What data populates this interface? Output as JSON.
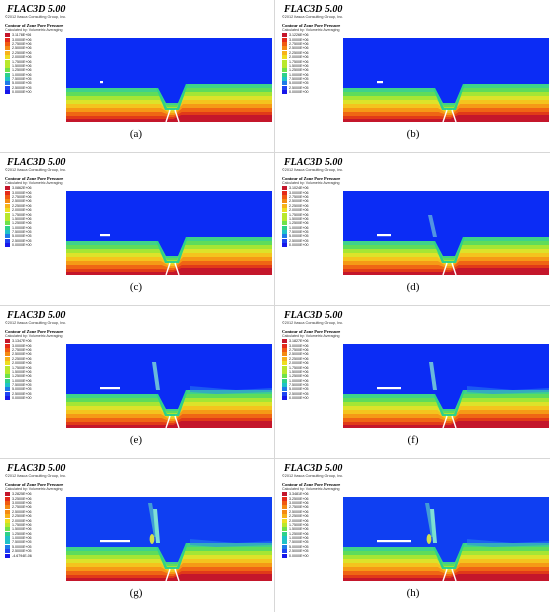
{
  "colors": {
    "blue": "#0b2cf5",
    "scale": [
      "#c4162b",
      "#e42b1a",
      "#f05a12",
      "#f48a13",
      "#f7b21a",
      "#eede20",
      "#b9e82c",
      "#6fe24a",
      "#2ed18a",
      "#1fc2c8",
      "#1e7be8",
      "#1f44f2",
      "#1717ea"
    ]
  },
  "panels": [
    {
      "title": "FLAC3D 5.00",
      "copyright": "©2012 Itasca Consulting Group, Inc.",
      "legend_title": "Contour of Zone Pore Pressure",
      "legend_subtitle": "Calculated by: Volumetric Averaging",
      "legend_values": [
        "3.1178E+06",
        "3.0000E+06",
        "2.7500E+06",
        "2.5000E+06",
        "2.2500E+06",
        "2.0000E+06",
        "1.7500E+06",
        "1.5000E+06",
        "1.2500E+06",
        "1.0000E+06",
        "7.5000E+05",
        "5.0000E+05",
        "2.5000E+05",
        "0.0000E+00"
      ],
      "caption": "(a)"
    },
    {
      "title": "FLAC3D 5.00",
      "copyright": "©2012 Itasca Consulting Group, Inc.",
      "legend_title": "Contour of Zone Pore Pressure",
      "legend_subtitle": "Calculated by: Volumetric Averaging",
      "legend_values": [
        "3.1226E+06",
        "3.0000E+06",
        "2.7500E+06",
        "2.5000E+06",
        "2.2500E+06",
        "2.0000E+06",
        "1.7500E+06",
        "1.5000E+06",
        "1.2500E+06",
        "1.0000E+06",
        "7.5000E+05",
        "5.0000E+05",
        "2.5000E+05",
        "0.0000E+00"
      ],
      "caption": "(b)"
    },
    {
      "title": "FLAC3D 5.00",
      "copyright": "©2012 Itasca Consulting Group, Inc.",
      "legend_title": "Contour of Zone Pore Pressure",
      "legend_subtitle": "Calculated by: Volumetric Averaging",
      "legend_values": [
        "3.0862E+06",
        "3.0000E+06",
        "2.7500E+06",
        "2.5000E+06",
        "2.2500E+06",
        "2.0000E+06",
        "1.7500E+06",
        "1.5000E+06",
        "1.2500E+06",
        "1.0000E+06",
        "7.5000E+05",
        "5.0000E+05",
        "2.5000E+05",
        "0.0000E+00"
      ],
      "caption": "(c)"
    },
    {
      "title": "FLAC3D 5.00",
      "copyright": "©2012 Itasca Consulting Group, Inc.",
      "legend_title": "Contour of Zone Pore Pressure",
      "legend_subtitle": "Calculated by: Volumetric Averaging",
      "legend_values": [
        "3.1024E+06",
        "3.0000E+06",
        "2.7500E+06",
        "2.5000E+06",
        "2.2500E+06",
        "2.0000E+06",
        "1.7500E+06",
        "1.5000E+06",
        "1.2500E+06",
        "1.0000E+06",
        "7.5000E+05",
        "5.0000E+05",
        "2.5000E+05",
        "0.0000E+00"
      ],
      "caption": "(d)"
    },
    {
      "title": "FLAC3D 5.00",
      "copyright": "©2012 Itasca Consulting Group, Inc.",
      "legend_title": "Contour of Zone Pore Pressure",
      "legend_subtitle": "Calculated by: Volumetric Averaging",
      "legend_values": [
        "3.1347E+06",
        "3.0000E+06",
        "2.7500E+06",
        "2.5000E+06",
        "2.2500E+06",
        "2.0000E+06",
        "1.7500E+06",
        "1.5000E+06",
        "1.2500E+06",
        "1.0000E+06",
        "7.5000E+05",
        "5.0000E+05",
        "2.5000E+05",
        "0.0000E+00"
      ],
      "caption": "(e)"
    },
    {
      "title": "FLAC3D 5.00",
      "copyright": "©2012 Itasca Consulting Group, Inc.",
      "legend_title": "Contour of Zone Pore Pressure",
      "legend_subtitle": "Calculated by: Volumetric Averaging",
      "legend_values": [
        "3.1827E+06",
        "3.0000E+06",
        "2.7500E+06",
        "2.5000E+06",
        "2.2500E+06",
        "2.0000E+06",
        "1.7500E+06",
        "1.5000E+06",
        "1.2500E+06",
        "1.0000E+06",
        "7.5000E+05",
        "5.0000E+05",
        "2.5000E+05",
        "0.0000E+00"
      ],
      "caption": "(f)"
    },
    {
      "title": "FLAC3D 5.00",
      "copyright": "©2012 Itasca Consulting Group, Inc.",
      "legend_title": "Contour of Zone Pore Pressure",
      "legend_subtitle": "Calculated by: Volumetric Averaging",
      "legend_values": [
        "3.2825E+06",
        "3.2500E+06",
        "3.0000E+06",
        "2.7500E+06",
        "2.5000E+06",
        "2.2500E+06",
        "2.0000E+06",
        "1.7500E+06",
        "1.5000E+06",
        "1.2500E+06",
        "1.0000E+06",
        "7.5000E+05",
        "5.0000E+05",
        "2.5000E+05",
        "-4.6794E-06"
      ],
      "caption": "(g)"
    },
    {
      "title": "FLAC3D 5.00",
      "copyright": "©2012 Itasca Consulting Group, Inc.",
      "legend_title": "Contour of Zone Pore Pressure",
      "legend_subtitle": "Calculated by: Volumetric Averaging",
      "legend_values": [
        "3.3481E+06",
        "3.2500E+06",
        "3.0000E+06",
        "2.7500E+06",
        "2.5000E+06",
        "2.2500E+06",
        "2.0000E+06",
        "1.7500E+06",
        "1.5000E+06",
        "1.2500E+06",
        "1.0000E+06",
        "7.5000E+05",
        "5.0000E+05",
        "2.5000E+05",
        "0.0000E+00"
      ],
      "caption": "(h)"
    }
  ]
}
